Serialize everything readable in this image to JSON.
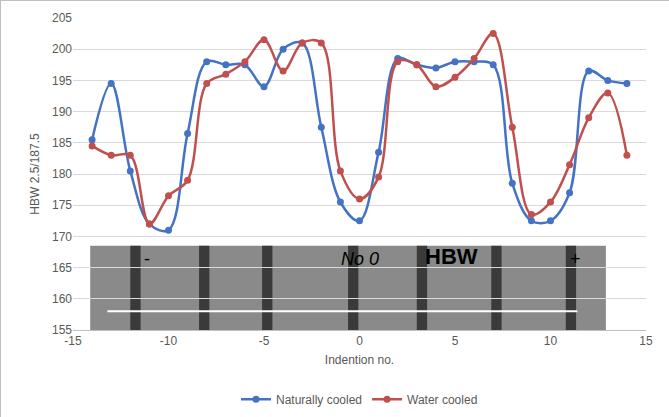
{
  "chart_data": {
    "type": "line",
    "x_label": "Indention no.",
    "y_label": "HBW 2.5/187.5",
    "x": [
      -14,
      -13,
      -12,
      -11,
      -10,
      -9,
      -8,
      -7,
      -6,
      -5,
      -4,
      -3,
      -2,
      -1,
      0,
      1,
      2,
      3,
      4,
      5,
      6,
      7,
      8,
      9,
      10,
      11,
      12,
      13,
      14
    ],
    "series": [
      {
        "name": "Naturally cooled",
        "color": "#4472c4",
        "marker": "circle",
        "values": [
          185.5,
          194.5,
          180.5,
          172,
          171,
          186.5,
          198,
          197.5,
          197.5,
          194,
          200,
          201,
          187.5,
          175.5,
          172.5,
          183.5,
          198.5,
          197.5,
          197,
          198,
          198,
          197.5,
          178.5,
          172.5,
          172.5,
          177,
          196.5,
          195,
          194.5
        ]
      },
      {
        "name": "Water cooled",
        "color": "#c0504d",
        "marker": "circle",
        "values": [
          184.5,
          183,
          183,
          172,
          176.5,
          179,
          194.5,
          196,
          198,
          201.5,
          196.5,
          201,
          201,
          180.5,
          176,
          179.5,
          198,
          197.5,
          194,
          195.5,
          198.5,
          202.5,
          187.5,
          173.5,
          175.5,
          181.5,
          189,
          193,
          183
        ]
      }
    ],
    "xlim": [
      -15,
      15
    ],
    "xticks": [
      -15,
      -10,
      -5,
      0,
      5,
      10,
      15
    ],
    "ylim": [
      155,
      205
    ],
    "yticks": [
      155,
      160,
      165,
      170,
      175,
      180,
      185,
      190,
      195,
      200,
      205
    ],
    "grid": true,
    "legend": "bottom",
    "line_style": "spline",
    "annotations": [
      "-",
      "No 0",
      "HBW",
      "+"
    ]
  }
}
